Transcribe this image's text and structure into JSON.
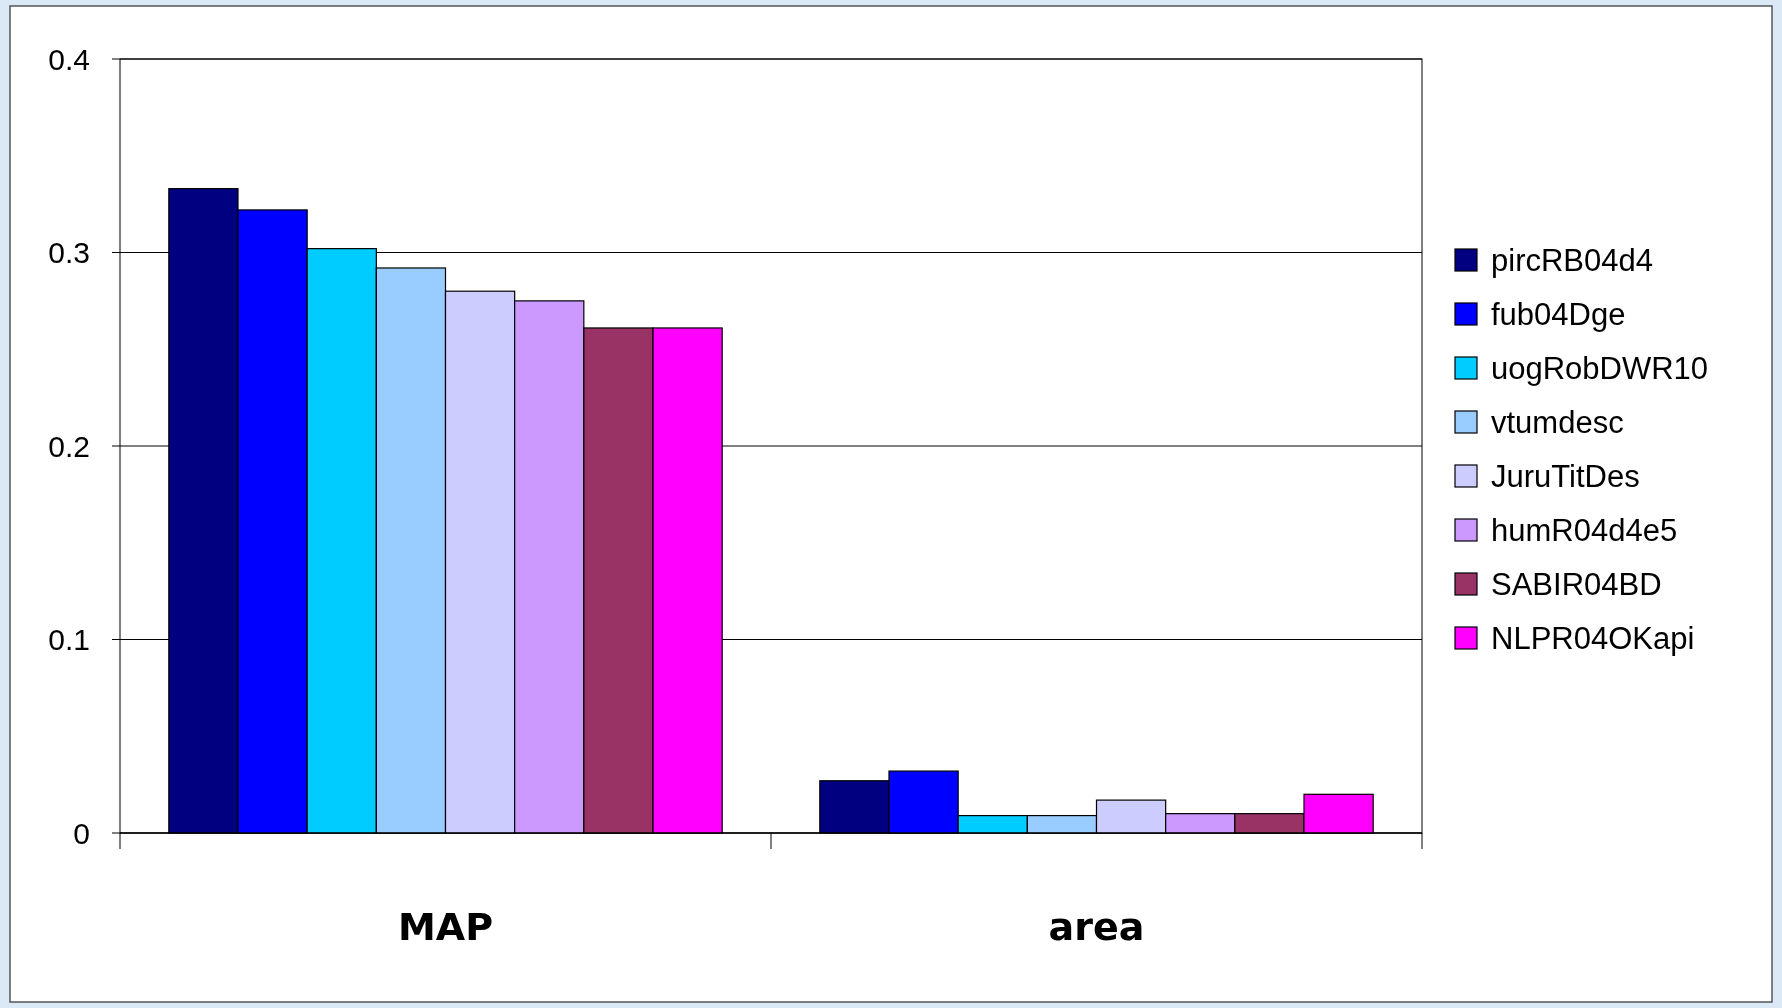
{
  "chart_data": {
    "type": "bar",
    "categories": [
      "MAP",
      "area"
    ],
    "series": [
      {
        "name": "pircRB04d4",
        "color": "#000080",
        "values": [
          0.333,
          0.027
        ]
      },
      {
        "name": "fub04Dge",
        "color": "#0000ff",
        "values": [
          0.322,
          0.032
        ]
      },
      {
        "name": "uogRobDWR10",
        "color": "#00ccff",
        "values": [
          0.302,
          0.009
        ]
      },
      {
        "name": "vtumdesc",
        "color": "#99ccff",
        "values": [
          0.292,
          0.009
        ]
      },
      {
        "name": "JuruTitDes",
        "color": "#ccccff",
        "values": [
          0.28,
          0.017
        ]
      },
      {
        "name": "humR04d4e5",
        "color": "#cc99ff",
        "values": [
          0.275,
          0.01
        ]
      },
      {
        "name": "SABIR04BD",
        "color": "#993366",
        "values": [
          0.261,
          0.01
        ]
      },
      {
        "name": "NLPR04OKapi",
        "color": "#ff00ff",
        "values": [
          0.261,
          0.02
        ]
      }
    ],
    "ylim": [
      0,
      0.4
    ],
    "yticks": [
      0,
      {
        "value": 0.1,
        "label": "0.1"
      },
      {
        "value": 0.2,
        "label": "0.2"
      },
      {
        "value": 0.3,
        "label": "0.3"
      },
      {
        "value": 0.4,
        "label": "0.4"
      }
    ],
    "grid": "y",
    "legend": "right"
  }
}
